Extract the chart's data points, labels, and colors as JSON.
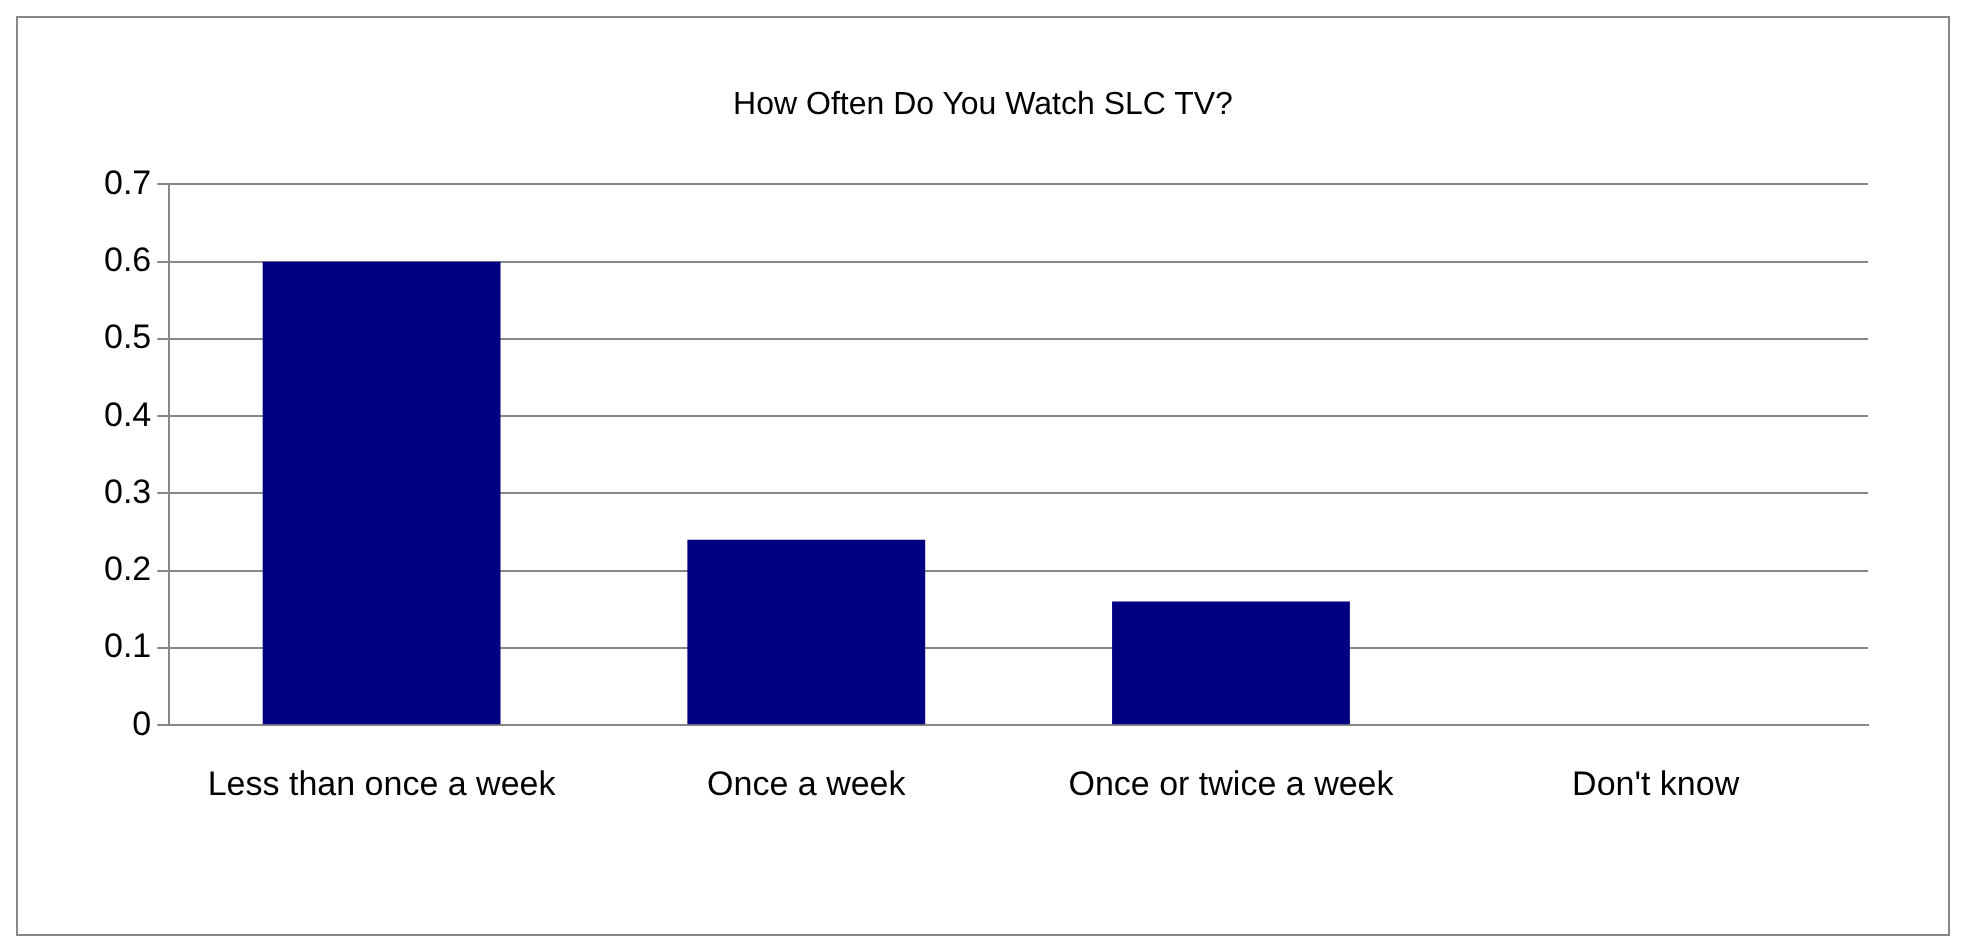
{
  "chart_data": {
    "type": "bar",
    "title": "How Often Do You Watch SLC TV?",
    "categories": [
      "Less than once a week",
      "Once a week",
      "Once or twice a week",
      "Don't know"
    ],
    "values": [
      0.6,
      0.24,
      0.16,
      0
    ],
    "color": "#000080",
    "ylim": [
      0,
      0.7
    ],
    "yticks": [
      0,
      0.1,
      0.2,
      0.3,
      0.4,
      0.5,
      0.6,
      0.7
    ],
    "grid": "y",
    "legend": false
  }
}
